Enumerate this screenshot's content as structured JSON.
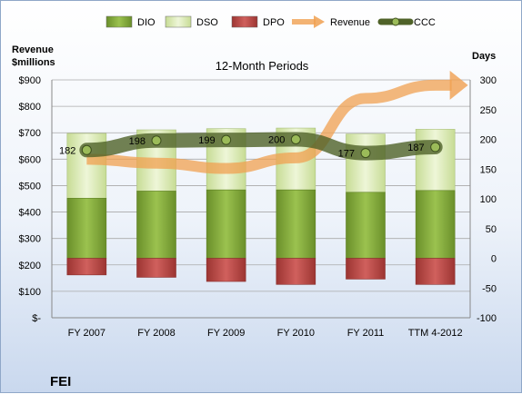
{
  "chart_data": {
    "type": "bar",
    "title": "12-Month Periods",
    "company": "FEI",
    "left_axis": {
      "label": "Revenue\n$millions",
      "ylim": [
        0,
        900
      ],
      "step": 100,
      "tick_labels": [
        "$-",
        "$100",
        "$200",
        "$300",
        "$400",
        "$500",
        "$600",
        "$700",
        "$800",
        "$900"
      ]
    },
    "right_axis": {
      "label": "Days",
      "ylim": [
        -100,
        300
      ],
      "step": 50,
      "tick_labels": [
        "-100",
        "-50",
        "0",
        "50",
        "100",
        "150",
        "200",
        "250",
        "300"
      ]
    },
    "categories": [
      "FY 2007",
      "FY 2008",
      "FY 2009",
      "FY 2010",
      "FY 2011",
      "TTM 4-2012"
    ],
    "series": [
      {
        "name": "DIO",
        "type": "stacked-bar",
        "axis": "days",
        "color": "#7fa83a",
        "values": [
          101,
          113,
          115,
          115,
          111,
          114
        ]
      },
      {
        "name": "DSO",
        "type": "stacked-bar",
        "axis": "days",
        "color": "#d8e8b0",
        "values": [
          109,
          103,
          103,
          104,
          98,
          103
        ]
      },
      {
        "name": "DPO",
        "type": "stacked-bar",
        "axis": "days",
        "color": "#c0504d",
        "values": [
          -28,
          -32,
          -39,
          -44,
          -35,
          -44
        ]
      },
      {
        "name": "Revenue",
        "type": "line",
        "axis": "revenue",
        "color": "#f0a050",
        "values": [
          600,
          585,
          565,
          605,
          830,
          880
        ]
      },
      {
        "name": "CCC",
        "type": "line",
        "axis": "days",
        "color": "#4f6228",
        "values": [
          182,
          198,
          199,
          200,
          177,
          187
        ],
        "data_labels": [
          "182",
          "198",
          "199",
          "200",
          "177",
          "187"
        ]
      }
    ],
    "legend": {
      "position": "top",
      "entries": [
        "DIO",
        "DSO",
        "DPO",
        "Revenue",
        "CCC"
      ]
    },
    "grid": true
  }
}
